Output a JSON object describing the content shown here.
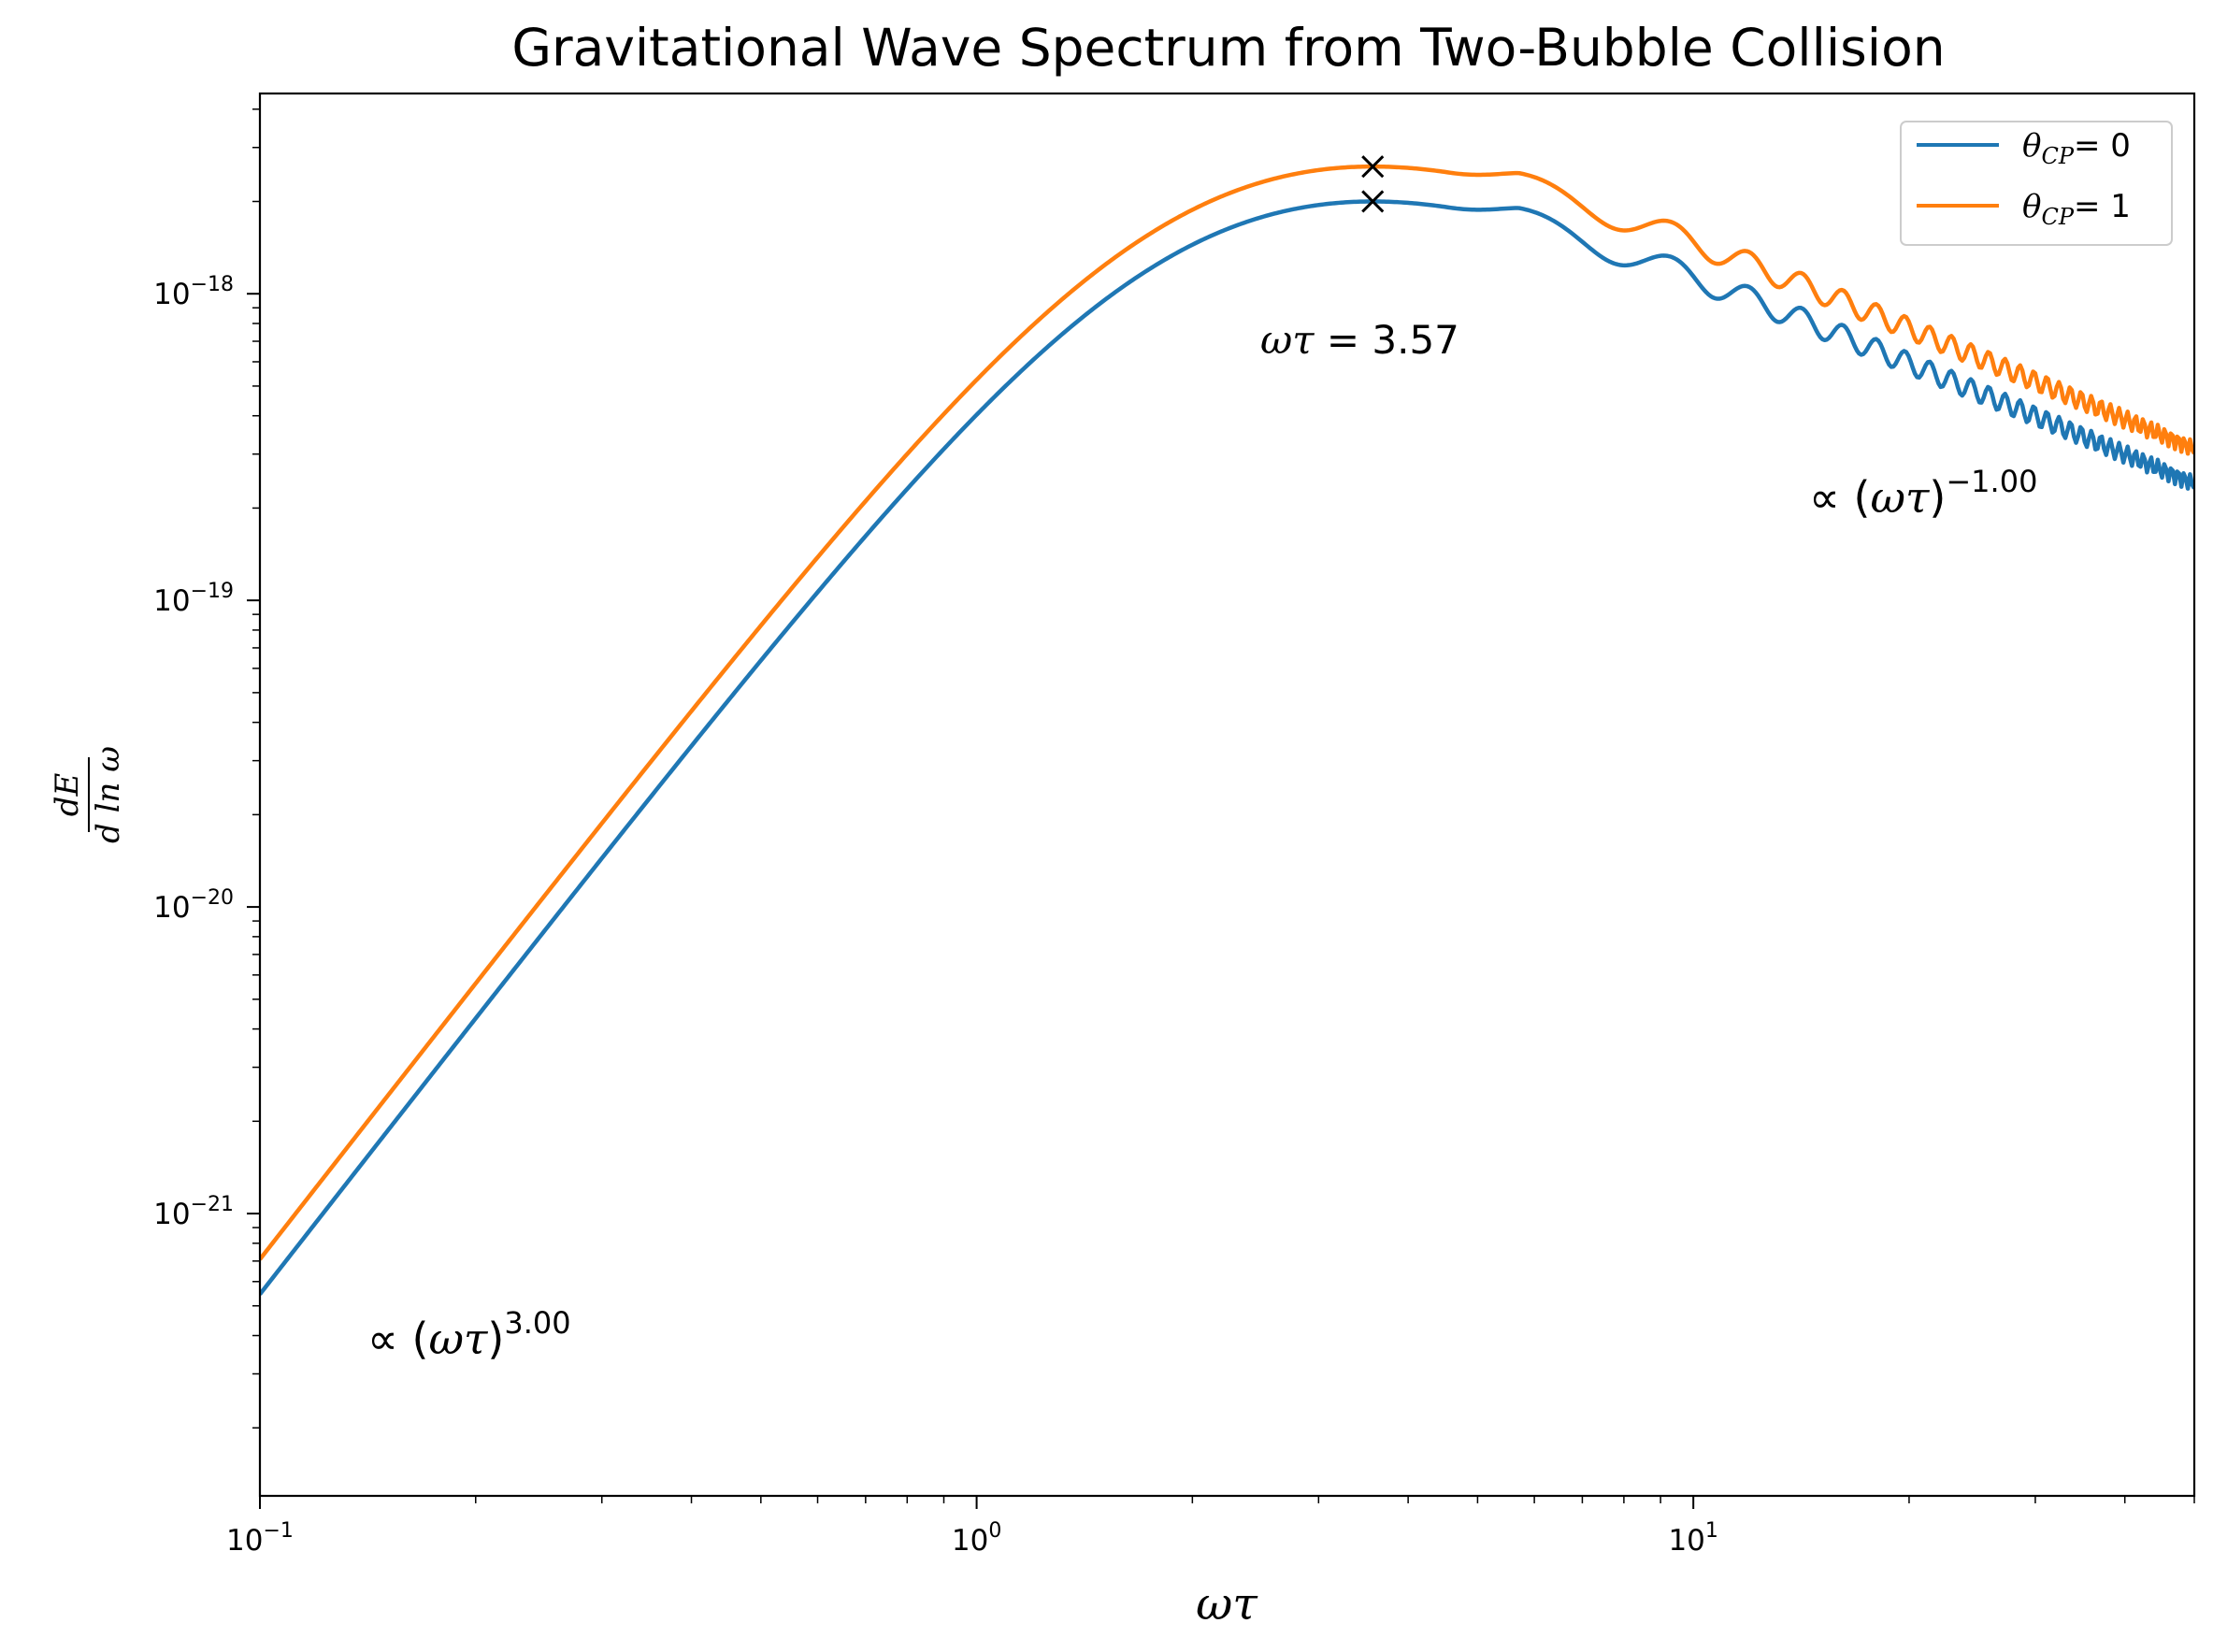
{
  "chart_data": {
    "type": "line",
    "title": "Gravitational Wave Spectrum from Two-Bubble Collision",
    "xlabel": "ωτ",
    "ylabel": {
      "num": "dE",
      "den": "d ln ω"
    },
    "xscale": "log",
    "yscale": "log",
    "xlim": [
      0.1,
      50
    ],
    "ylim": [
      1.2e-22,
      4.5e-18
    ],
    "x_ticks": [
      {
        "value": 0.1,
        "base": "10",
        "exp": "−1"
      },
      {
        "value": 1,
        "base": "10",
        "exp": "0"
      },
      {
        "value": 10,
        "base": "10",
        "exp": "1"
      }
    ],
    "y_ticks": [
      {
        "value": 1e-21,
        "base": "10",
        "exp": "−21"
      },
      {
        "value": 1e-20,
        "base": "10",
        "exp": "−20"
      },
      {
        "value": 1e-19,
        "base": "10",
        "exp": "−19"
      },
      {
        "value": 1e-18,
        "base": "10",
        "exp": "−18"
      }
    ],
    "grid": false,
    "legend_position": "top-right",
    "model": {
      "peak_x": 3.57,
      "low_slope": 3.0,
      "high_slope": -1.0,
      "amp_at_0_1": 1.8e-22,
      "ripple_amp": 0.11,
      "ripple_period_x": 4.3
    },
    "series": [
      {
        "name_sym": "θ",
        "name_sub": "CP",
        "name_val": "= 0",
        "color": "#1f77b4",
        "scale": 1.0,
        "peak_y": 2e-18
      },
      {
        "name_sym": "θ",
        "name_sub": "CP",
        "name_val": "= 1",
        "color": "#ff7f0e",
        "scale": 1.3,
        "peak_y": 2.6e-18
      }
    ],
    "peak_annotation": {
      "sym": "ωτ",
      "text": " = 3.57"
    },
    "slope_annotations": [
      {
        "prefix": "∝ (",
        "sym": "ωτ",
        "suffix": ")",
        "exp": "3.00"
      },
      {
        "prefix": "∝ (",
        "sym": "ωτ",
        "suffix": ")",
        "exp": "−1.00"
      }
    ]
  }
}
